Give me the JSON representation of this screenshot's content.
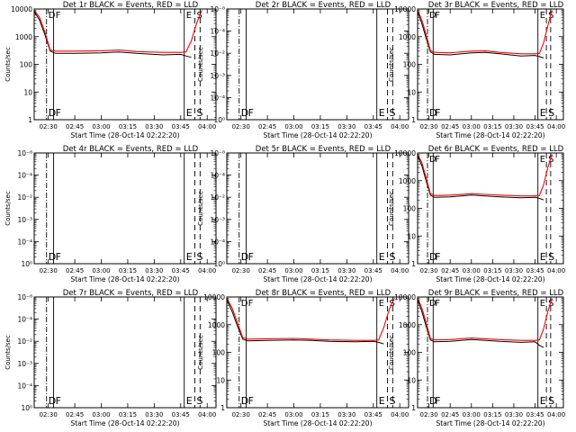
{
  "figure": {
    "background": "#ffffff",
    "axis_color": "#000000",
    "events_color": "#000000",
    "lld_color": "#ff0000",
    "ylabel": "Counts/sec",
    "xlabel": "Start Time (28-Oct-14 02:22:20)",
    "xticks": [
      "02:30",
      "02:45",
      "03:00",
      "03:15",
      "03:30",
      "03:45",
      "04:00"
    ],
    "ytick_labels_counts": [
      "1",
      "10",
      "100",
      "1000",
      "10000"
    ],
    "ytick_labels_empty": [
      "10⁰",
      "10⁻⁴",
      "10⁻³",
      "10⁻²",
      "10⁻⁴",
      "10⁻⁸"
    ]
  },
  "chart_data": [
    {
      "title": "Det 1r BLACK = Events, RED = LLD",
      "type": "line",
      "yscale": "log",
      "ylim": [
        1,
        10000
      ],
      "has_data": true,
      "event_lines": [
        {
          "x": "02:29",
          "label": "D",
          "style": "dashdot"
        },
        {
          "x": "02:33",
          "label": "F",
          "style": "solid"
        },
        {
          "x": "03:47",
          "label": "E",
          "style": "solid"
        },
        {
          "x": "03:53",
          "label": "S",
          "style": "dashed"
        },
        {
          "x": "03:56",
          "label": "",
          "style": "dashed"
        }
      ],
      "series": [
        {
          "name": "Events",
          "color": "#000000",
          "x": [
            "02:22",
            "02:25",
            "02:28",
            "02:31",
            "02:34",
            "02:45",
            "03:00",
            "03:10",
            "03:20",
            "03:35",
            "03:45",
            "03:48",
            "03:51"
          ],
          "y": [
            8000,
            4000,
            1200,
            300,
            250,
            250,
            260,
            280,
            250,
            220,
            230,
            200,
            180
          ]
        },
        {
          "name": "LLD",
          "color": "#ff0000",
          "x": [
            "02:22",
            "02:25",
            "02:28",
            "02:31",
            "02:34",
            "02:45",
            "03:00",
            "03:10",
            "03:20",
            "03:35",
            "03:45",
            "03:48",
            "03:51",
            "03:54",
            "03:57"
          ],
          "y": [
            9000,
            5000,
            1500,
            330,
            300,
            300,
            310,
            330,
            290,
            270,
            270,
            280,
            700,
            3000,
            9000
          ]
        }
      ]
    },
    {
      "title": "Det 2r BLACK = Events, RED = LLD",
      "type": "line",
      "yscale": "log",
      "ylim": [
        1,
        100000
      ],
      "has_data": false,
      "event_lines": [
        {
          "x": "02:29",
          "label": "D",
          "style": "dashdot"
        },
        {
          "x": "02:33",
          "label": "F",
          "style": "solid"
        },
        {
          "x": "03:47",
          "label": "E",
          "style": "solid"
        },
        {
          "x": "03:53",
          "label": "S",
          "style": "dashed"
        },
        {
          "x": "03:56",
          "label": "",
          "style": "dashed"
        }
      ],
      "series": []
    },
    {
      "title": "Det 3r BLACK = Events, RED = LLD",
      "type": "line",
      "yscale": "log",
      "ylim": [
        1,
        10000
      ],
      "has_data": true,
      "event_lines": [
        {
          "x": "02:29",
          "label": "D",
          "style": "dashdot"
        },
        {
          "x": "02:33",
          "label": "F",
          "style": "solid"
        },
        {
          "x": "03:47",
          "label": "E",
          "style": "solid"
        },
        {
          "x": "03:53",
          "label": "S",
          "style": "dashed"
        },
        {
          "x": "03:56",
          "label": "",
          "style": "dashed"
        }
      ],
      "series": [
        {
          "name": "Events",
          "color": "#000000",
          "x": [
            "02:22",
            "02:25",
            "02:28",
            "02:31",
            "02:34",
            "02:45",
            "03:00",
            "03:10",
            "03:20",
            "03:35",
            "03:45",
            "03:48",
            "03:51"
          ],
          "y": [
            8000,
            3000,
            900,
            280,
            230,
            220,
            260,
            270,
            240,
            200,
            210,
            190,
            170
          ]
        },
        {
          "name": "LLD",
          "color": "#ff0000",
          "x": [
            "02:22",
            "02:25",
            "02:28",
            "02:31",
            "02:34",
            "02:45",
            "03:00",
            "03:10",
            "03:20",
            "03:35",
            "03:45",
            "03:48",
            "03:51",
            "03:54",
            "03:57"
          ],
          "y": [
            9000,
            4000,
            1200,
            320,
            270,
            260,
            300,
            310,
            270,
            240,
            240,
            250,
            600,
            2500,
            9000
          ]
        }
      ]
    },
    {
      "title": "Det 4r BLACK = Events, RED = LLD",
      "type": "line",
      "yscale": "log",
      "ylim": [
        1,
        100000
      ],
      "has_data": false,
      "event_lines": [
        {
          "x": "02:29",
          "label": "D",
          "style": "dashdot"
        },
        {
          "x": "02:33",
          "label": "F",
          "style": "solid"
        },
        {
          "x": "03:47",
          "label": "E",
          "style": "solid"
        },
        {
          "x": "03:53",
          "label": "S",
          "style": "dashed"
        },
        {
          "x": "03:56",
          "label": "",
          "style": "dashed"
        }
      ],
      "series": []
    },
    {
      "title": "Det 5r BLACK = Events, RED = LLD",
      "type": "line",
      "yscale": "log",
      "ylim": [
        1,
        100000
      ],
      "has_data": false,
      "event_lines": [
        {
          "x": "02:29",
          "label": "D",
          "style": "dashdot"
        },
        {
          "x": "02:33",
          "label": "F",
          "style": "solid"
        },
        {
          "x": "03:47",
          "label": "E",
          "style": "solid"
        },
        {
          "x": "03:53",
          "label": "S",
          "style": "dashed"
        },
        {
          "x": "03:56",
          "label": "",
          "style": "dashed"
        }
      ],
      "series": []
    },
    {
      "title": "Det 6r BLACK = Events, RED = LLD",
      "type": "line",
      "yscale": "log",
      "ylim": [
        1,
        10000
      ],
      "has_data": true,
      "event_lines": [
        {
          "x": "02:29",
          "label": "D",
          "style": "dashdot"
        },
        {
          "x": "02:33",
          "label": "F",
          "style": "solid"
        },
        {
          "x": "03:47",
          "label": "E",
          "style": "solid"
        },
        {
          "x": "03:53",
          "label": "S",
          "style": "dashed"
        },
        {
          "x": "03:56",
          "label": "",
          "style": "dashed"
        }
      ],
      "series": [
        {
          "name": "Events",
          "color": "#000000",
          "x": [
            "02:22",
            "02:25",
            "02:28",
            "02:31",
            "02:34",
            "02:45",
            "03:00",
            "03:10",
            "03:20",
            "03:35",
            "03:45",
            "03:48",
            "03:51"
          ],
          "y": [
            8000,
            3500,
            1000,
            300,
            250,
            260,
            300,
            280,
            260,
            240,
            250,
            230,
            200
          ]
        },
        {
          "name": "LLD",
          "color": "#ff0000",
          "x": [
            "02:22",
            "02:25",
            "02:28",
            "02:31",
            "02:34",
            "02:45",
            "03:00",
            "03:10",
            "03:20",
            "03:35",
            "03:45",
            "03:48",
            "03:51",
            "03:54",
            "03:57"
          ],
          "y": [
            9000,
            4500,
            1300,
            340,
            290,
            300,
            340,
            320,
            300,
            280,
            280,
            290,
            700,
            3000,
            9000
          ]
        }
      ]
    },
    {
      "title": "Det 7r BLACK = Events, RED = LLD",
      "type": "line",
      "yscale": "log",
      "ylim": [
        1,
        100000
      ],
      "has_data": false,
      "event_lines": [
        {
          "x": "02:29",
          "label": "D",
          "style": "dashdot"
        },
        {
          "x": "02:33",
          "label": "F",
          "style": "solid"
        },
        {
          "x": "03:47",
          "label": "E",
          "style": "solid"
        },
        {
          "x": "03:53",
          "label": "S",
          "style": "dashed"
        },
        {
          "x": "03:56",
          "label": "",
          "style": "dashed"
        }
      ],
      "series": []
    },
    {
      "title": "Det 8r BLACK = Events, RED = LLD",
      "type": "line",
      "yscale": "log",
      "ylim": [
        1,
        10000
      ],
      "has_data": true,
      "event_lines": [
        {
          "x": "02:29",
          "label": "D",
          "style": "dashdot"
        },
        {
          "x": "02:33",
          "label": "F",
          "style": "solid"
        },
        {
          "x": "03:47",
          "label": "E",
          "style": "solid"
        },
        {
          "x": "03:53",
          "label": "S",
          "style": "dashed"
        },
        {
          "x": "03:56",
          "label": "",
          "style": "dashed"
        }
      ],
      "series": [
        {
          "name": "Events",
          "color": "#000000",
          "x": [
            "02:22",
            "02:25",
            "02:28",
            "02:31",
            "02:34",
            "02:45",
            "03:00",
            "03:10",
            "03:20",
            "03:35",
            "03:45",
            "03:48",
            "03:51"
          ],
          "y": [
            8000,
            3000,
            900,
            300,
            260,
            270,
            280,
            270,
            250,
            240,
            250,
            230,
            200
          ]
        },
        {
          "name": "LLD",
          "color": "#ff0000",
          "x": [
            "02:22",
            "02:25",
            "02:28",
            "02:31",
            "02:34",
            "02:45",
            "03:00",
            "03:10",
            "03:20",
            "03:35",
            "03:45",
            "03:48",
            "03:51",
            "03:54",
            "03:57"
          ],
          "y": [
            9000,
            4000,
            1200,
            340,
            300,
            310,
            320,
            300,
            280,
            270,
            270,
            280,
            800,
            3500,
            9000
          ]
        }
      ]
    },
    {
      "title": "Det 9r BLACK = Events, RED = LLD",
      "type": "line",
      "yscale": "log",
      "ylim": [
        1,
        10000
      ],
      "has_data": true,
      "event_lines": [
        {
          "x": "02:29",
          "label": "D",
          "style": "dashdot"
        },
        {
          "x": "02:33",
          "label": "F",
          "style": "solid"
        },
        {
          "x": "03:47",
          "label": "E",
          "style": "solid"
        },
        {
          "x": "03:53",
          "label": "S",
          "style": "dashed"
        },
        {
          "x": "03:56",
          "label": "",
          "style": "dashed"
        }
      ],
      "series": [
        {
          "name": "Events",
          "color": "#000000",
          "x": [
            "02:22",
            "02:25",
            "02:28",
            "02:31",
            "02:34",
            "02:45",
            "03:00",
            "03:10",
            "03:20",
            "03:35",
            "03:45",
            "03:48",
            "03:51"
          ],
          "y": [
            8000,
            3000,
            900,
            280,
            240,
            250,
            290,
            270,
            250,
            230,
            240,
            180,
            150
          ]
        },
        {
          "name": "LLD",
          "color": "#ff0000",
          "x": [
            "02:22",
            "02:25",
            "02:28",
            "02:31",
            "02:34",
            "02:45",
            "03:00",
            "03:10",
            "03:20",
            "03:35",
            "03:45",
            "03:48",
            "03:51",
            "03:54",
            "03:57"
          ],
          "y": [
            9000,
            4000,
            1200,
            320,
            280,
            290,
            330,
            310,
            290,
            270,
            270,
            280,
            700,
            3000,
            9000
          ]
        }
      ]
    }
  ]
}
